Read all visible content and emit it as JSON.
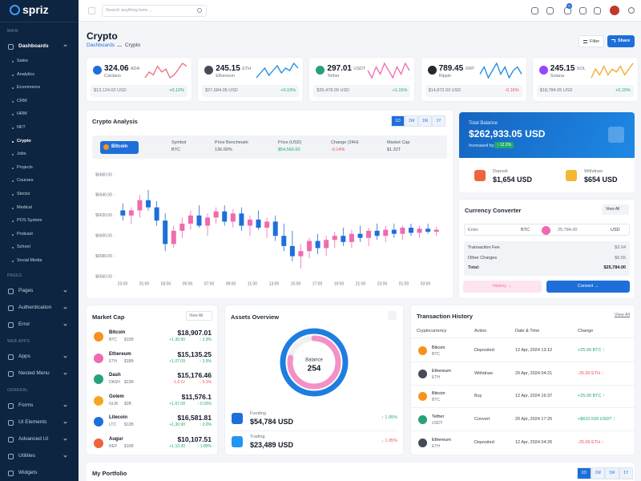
{
  "sidebar": {
    "logo": "spriz",
    "sections": [
      {
        "title": "MAIN",
        "items": [
          {
            "label": "Dashboards",
            "children": [
              "Sales",
              "Analytics",
              "Ecommerce",
              "CRM",
              "HRM",
              "NFT",
              "Crypto",
              "Jobs",
              "Projects",
              "Courses",
              "Stocks",
              "Medical",
              "POS System",
              "Podcast",
              "School",
              "Social Media"
            ]
          }
        ]
      },
      {
        "title": "PAGES",
        "items": [
          {
            "label": "Pages"
          },
          {
            "label": "Authentication"
          },
          {
            "label": "Error"
          }
        ]
      },
      {
        "title": "WEB APPS",
        "items": [
          {
            "label": "Apps"
          },
          {
            "label": "Nested Menu"
          }
        ]
      },
      {
        "title": "GENERAL",
        "items": [
          {
            "label": "Forms"
          },
          {
            "label": "UI Elements"
          },
          {
            "label": "Advanced UI"
          },
          {
            "label": "Utilities"
          },
          {
            "label": "Widgets"
          }
        ]
      }
    ]
  },
  "topbar": {
    "search_placeholder": "Search anything here ...",
    "badge": "5"
  },
  "header": {
    "title": "Crypto",
    "breadcrumb": [
      "Dashboards",
      "Crypto"
    ],
    "buttons": [
      "Filter",
      "Share"
    ]
  },
  "tickers": [
    {
      "price": "324.06",
      "symbol": "ADA",
      "name": "Cardano",
      "usd": "$13,124.02 USD",
      "change": "+0.12%",
      "trend": "up",
      "color": "#1e6fd9",
      "spark_color": "#ef6b7d",
      "sparkline": [
        6,
        8,
        7,
        10,
        8,
        9,
        6,
        7,
        9,
        11,
        10
      ]
    },
    {
      "price": "245.15",
      "symbol": "ETH",
      "name": "Ethereum",
      "usd": "$27,684.05 USD",
      "change": "+0.15%",
      "trend": "up",
      "color": "#444b59",
      "spark_color": "#1e88e5",
      "sparkline": [
        5,
        7,
        9,
        6,
        8,
        10,
        7,
        9,
        8,
        11,
        9
      ]
    },
    {
      "price": "297.01",
      "symbol": "USDT",
      "name": "Tether",
      "usd": "$26,478.09 USD",
      "change": "+1.15%",
      "trend": "up",
      "color": "#26a17b",
      "spark_color": "#f06ab0",
      "sparkline": [
        8,
        6,
        9,
        7,
        10,
        8,
        6,
        9,
        7,
        10,
        8
      ]
    },
    {
      "price": "789.45",
      "symbol": "XRP",
      "name": "Ripple",
      "usd": "$14,872.03 USD",
      "change": "-0.16%",
      "trend": "down",
      "color": "#23292f",
      "spark_color": "#1e88e5",
      "sparkline": [
        7,
        9,
        6,
        8,
        10,
        7,
        9,
        6,
        8,
        9,
        7
      ]
    },
    {
      "price": "245.15",
      "symbol": "SOL",
      "name": "Solana",
      "usd": "$18,784.05 USD",
      "change": "+0.15%",
      "trend": "up",
      "color": "#9945ff",
      "spark_color": "#f5a623",
      "sparkline": [
        6,
        9,
        7,
        10,
        7,
        9,
        8,
        10,
        7,
        9,
        11
      ]
    }
  ],
  "crypto_analysis": {
    "title": "Crypto Analysis",
    "tabs": [
      "1D",
      "1W",
      "1M",
      "1Y"
    ],
    "coin": "Bitcoin",
    "stats": [
      {
        "label": "Symbol",
        "value": "BTC"
      },
      {
        "label": "Price Benchmark",
        "value": "136.00%"
      },
      {
        "label": "Price (USD)",
        "value": "$54,566.60",
        "trend": "up"
      },
      {
        "label": "Change (24H)",
        "value": "-0.14%",
        "trend": "down"
      },
      {
        "label": "Market Cap",
        "value": "$1.32T"
      }
    ],
    "chart": {
      "type": "candlestick",
      "up_color": "#f06ab0",
      "down_color": "#1e6fd9",
      "ylim": [
        6560,
        6660
      ],
      "yticks": [
        {
          "value": 6660,
          "label": "$6660.00"
        },
        {
          "value": 6640,
          "label": "$6640.00"
        },
        {
          "value": 6620,
          "label": "$6620.00"
        },
        {
          "value": 6600,
          "label": "$6600.00"
        },
        {
          "value": 6580,
          "label": "$6580.00"
        },
        {
          "value": 6560,
          "label": "$6560.00"
        }
      ],
      "x_labels": [
        "23:00",
        "01:00",
        "03:00",
        "05:00",
        "07:00",
        "09:00",
        "11:00",
        "13:00",
        "15:00",
        "17:00",
        "19:00",
        "21:00",
        "23:00",
        "01:00",
        "03:00"
      ],
      "candles": [
        {
          "open": 6625,
          "high": 6632,
          "low": 6615,
          "close": 6620
        },
        {
          "open": 6620,
          "high": 6628,
          "low": 6612,
          "close": 6625
        },
        {
          "open": 6625,
          "high": 6640,
          "low": 6618,
          "close": 6635
        },
        {
          "open": 6635,
          "high": 6645,
          "low": 6625,
          "close": 6628
        },
        {
          "open": 6628,
          "high": 6634,
          "low": 6610,
          "close": 6615
        },
        {
          "open": 6615,
          "high": 6622,
          "low": 6585,
          "close": 6592
        },
        {
          "open": 6592,
          "high": 6610,
          "low": 6588,
          "close": 6605
        },
        {
          "open": 6605,
          "high": 6618,
          "low": 6598,
          "close": 6612
        },
        {
          "open": 6612,
          "high": 6625,
          "low": 6606,
          "close": 6620
        },
        {
          "open": 6620,
          "high": 6630,
          "low": 6608,
          "close": 6610
        },
        {
          "open": 6610,
          "high": 6622,
          "low": 6600,
          "close": 6618
        },
        {
          "open": 6618,
          "high": 6628,
          "low": 6612,
          "close": 6624
        },
        {
          "open": 6624,
          "high": 6630,
          "low": 6610,
          "close": 6614
        },
        {
          "open": 6614,
          "high": 6626,
          "low": 6608,
          "close": 6622
        },
        {
          "open": 6622,
          "high": 6628,
          "low": 6605,
          "close": 6610
        },
        {
          "open": 6610,
          "high": 6620,
          "low": 6600,
          "close": 6616
        },
        {
          "open": 6616,
          "high": 6625,
          "low": 6606,
          "close": 6608
        },
        {
          "open": 6608,
          "high": 6618,
          "low": 6598,
          "close": 6614
        },
        {
          "open": 6614,
          "high": 6620,
          "low": 6595,
          "close": 6600
        },
        {
          "open": 6600,
          "high": 6612,
          "low": 6585,
          "close": 6590
        },
        {
          "open": 6590,
          "high": 6605,
          "low": 6575,
          "close": 6580
        },
        {
          "open": 6580,
          "high": 6592,
          "low": 6568,
          "close": 6585
        },
        {
          "open": 6585,
          "high": 6598,
          "low": 6578,
          "close": 6595
        },
        {
          "open": 6595,
          "high": 6602,
          "low": 6582,
          "close": 6588
        },
        {
          "open": 6588,
          "high": 6600,
          "low": 6580,
          "close": 6596
        },
        {
          "open": 6596,
          "high": 6604,
          "low": 6588,
          "close": 6600
        },
        {
          "open": 6600,
          "high": 6608,
          "low": 6590,
          "close": 6594
        },
        {
          "open": 6594,
          "high": 6606,
          "low": 6588,
          "close": 6602
        },
        {
          "open": 6602,
          "high": 6610,
          "low": 6594,
          "close": 6598
        },
        {
          "open": 6598,
          "high": 6608,
          "low": 6590,
          "close": 6605
        },
        {
          "open": 6605,
          "high": 6612,
          "low": 6596,
          "close": 6600
        },
        {
          "open": 6600,
          "high": 6610,
          "low": 6594,
          "close": 6606
        },
        {
          "open": 6606,
          "high": 6612,
          "low": 6598,
          "close": 6602
        },
        {
          "open": 6602,
          "high": 6610,
          "low": 6596,
          "close": 6608
        },
        {
          "open": 6608,
          "high": 6612,
          "low": 6600,
          "close": 6603
        },
        {
          "open": 6603,
          "high": 6610,
          "low": 6598,
          "close": 6607
        },
        {
          "open": 6607,
          "high": 6612,
          "low": 6602,
          "close": 6604
        },
        {
          "open": 6604,
          "high": 6609,
          "low": 6600,
          "close": 6606
        }
      ]
    }
  },
  "balance": {
    "label": "Total Balance",
    "amount": "$262,933.05 USD",
    "increased_label": "Increased by",
    "increase": "↑ 12.2%",
    "deposit": {
      "label": "Deposit",
      "amount": "$1,654 USD"
    },
    "withdraw": {
      "label": "Withdraw",
      "amount": "$654 USD"
    }
  },
  "converter": {
    "title": "Currency Converter",
    "view_all": "View All",
    "enter": "Enter",
    "from": "BTC",
    "amount": "25,784.00",
    "to": "USD",
    "rows": [
      {
        "label": "Transaction Fee",
        "value": "$3.04"
      },
      {
        "label": "Other Charges",
        "value": "$6.55"
      },
      {
        "label": "Total:",
        "value": "$25,784.00"
      }
    ],
    "history": "History →",
    "convert": "Convert →"
  },
  "market_cap": {
    "title": "Market Cap",
    "view_all": "View All",
    "rows": [
      {
        "name": "Bitcoin",
        "symbol": "BTC",
        "cap": "$15B",
        "price": "$18,907.01",
        "change": "+1,30.90",
        "percent": "↑ 2.9%",
        "trend": "up",
        "color": "#f7931a"
      },
      {
        "name": "Ethereum",
        "symbol": "ETH",
        "cap": "$18B",
        "price": "$15,135.25",
        "change": "+1,07.09",
        "percent": "↑ 3.9%",
        "trend": "up",
        "color": "#f06ab0"
      },
      {
        "name": "Dash",
        "symbol": "DASH",
        "cap": "$23B",
        "price": "$15,176.46",
        "change": "-1.6 Cr",
        "percent": "↓ 0.1%",
        "trend": "down",
        "color": "#26a17b"
      },
      {
        "name": "Golem",
        "symbol": "GLM",
        "cap": "$2B",
        "price": "$11,576.1",
        "change": "+1,67.08",
        "percent": "↑ 0.03%",
        "trend": "up",
        "color": "#f5a623"
      },
      {
        "name": "Litecoin",
        "symbol": "LTC",
        "cap": "$13B",
        "price": "$16,581.81",
        "change": "+1,30.90",
        "percent": "↑ 3.6%",
        "trend": "up",
        "color": "#1e6fd9"
      },
      {
        "name": "Augur",
        "symbol": "REP",
        "cap": "$10B",
        "price": "$10,107.51",
        "change": "+1,10.30",
        "percent": "↑ 1.89%",
        "trend": "up",
        "color": "#f0643c"
      }
    ]
  },
  "assets": {
    "title": "Assets Overview",
    "center_label": "Balance",
    "center_value": "254",
    "rings": [
      {
        "color": "#1e7ee0",
        "value": 100
      },
      {
        "color": "#f391c4",
        "value": 78
      }
    ],
    "rows": [
      {
        "label": "Funding",
        "amount": "$54,784 USD",
        "change": "↑ 1.05%",
        "trend": "up",
        "color": "#1e6fd9"
      },
      {
        "label": "Trading",
        "amount": "$23,489 USD",
        "change": "↓ 1.05%",
        "trend": "down",
        "color": "#2196f3"
      }
    ]
  },
  "transactions": {
    "title": "Transaction History",
    "view_all": "View All",
    "headers": [
      "Cryptocurrency",
      "Action",
      "Date & Time",
      "Change"
    ],
    "rows": [
      {
        "name": "Bitcoin",
        "symbol": "BTC",
        "action": "Deposited",
        "date": "12 Apr, 2024 13:12",
        "change": "+25.00 BTC ↑",
        "trend": "up",
        "color": "#f7931a"
      },
      {
        "name": "Ethereum",
        "symbol": "ETH",
        "action": "Withdraw",
        "date": "20 Apr, 2024 04:21",
        "change": "-25.00 ETH ↑",
        "trend": "down",
        "color": "#444b59"
      },
      {
        "name": "Bitcoin",
        "symbol": "BTC",
        "action": "Buy",
        "date": "12 Apr, 2024 16:37",
        "change": "+25.00 BTC ↑",
        "trend": "up",
        "color": "#f7931a"
      },
      {
        "name": "Tether",
        "symbol": "USDT",
        "action": "Convert",
        "date": "20 Apr, 2024 17:25",
        "change": "+$610.539 USDT ↑",
        "trend": "up",
        "color": "#26a17b"
      },
      {
        "name": "Ethereum",
        "symbol": "ETH",
        "action": "Deposited",
        "date": "12 Apr, 2024 04:26",
        "change": "-25.00 ETH ↑",
        "trend": "down",
        "color": "#444b59"
      }
    ]
  },
  "portfolio": {
    "title": "My Portfolio",
    "tabs": [
      "1D",
      "1W",
      "1M",
      "1Y"
    ]
  }
}
